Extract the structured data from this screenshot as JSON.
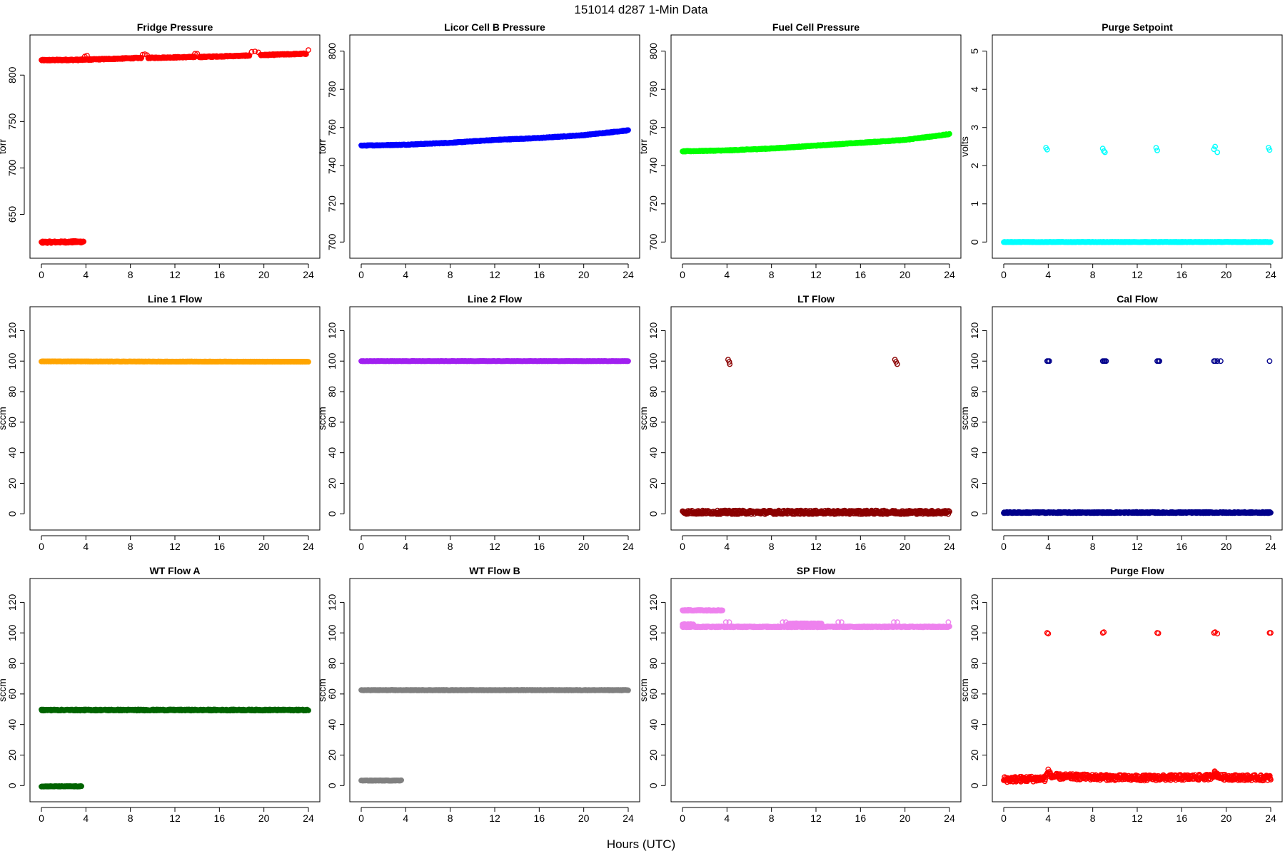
{
  "figure": {
    "title": "151014    d287    1-Min Data",
    "xlabel": "Hours (UTC)"
  },
  "chart_data": [
    {
      "type": "scatter",
      "title": "Fridge Pressure",
      "ylabel": "torr",
      "xlim": [
        0,
        24
      ],
      "ylim": [
        612,
        834
      ],
      "xticks": [
        0,
        4,
        8,
        12,
        16,
        20,
        24
      ],
      "yticks": [
        650,
        700,
        750,
        800
      ],
      "color": "#ff0000",
      "series": [
        {
          "kind": "trend",
          "x": [
            0,
            3.8
          ],
          "y": [
            816,
            816.5
          ],
          "noise": 0.7
        },
        {
          "kind": "trend",
          "x": [
            0,
            3.8
          ],
          "y": [
            620,
            620.5
          ],
          "noise": 1.0
        },
        {
          "kind": "trend",
          "x": [
            3.8,
            9.0
          ],
          "y": [
            816.5,
            818.5
          ],
          "noise": 0.6
        },
        {
          "kind": "trend",
          "x": [
            9.6,
            13.8
          ],
          "y": [
            818.5,
            819.5
          ],
          "noise": 0.6
        },
        {
          "kind": "trend",
          "x": [
            14.2,
            18.7
          ],
          "y": [
            819.5,
            821
          ],
          "noise": 0.6
        },
        {
          "kind": "trend",
          "x": [
            19.7,
            23.8
          ],
          "y": [
            821.5,
            823
          ],
          "noise": 0.6
        },
        {
          "kind": "points",
          "x": [
            3.9,
            4.1,
            9.1,
            9.3,
            9.5,
            13.8,
            14.0,
            18.9,
            19.2,
            19.5,
            24.0
          ],
          "y": [
            820,
            821,
            822,
            822.5,
            821.5,
            823,
            823,
            825,
            825.5,
            824.5,
            827
          ]
        }
      ]
    },
    {
      "type": "scatter",
      "title": "Licor Cell B Pressure",
      "ylabel": "torr",
      "xlim": [
        0,
        24
      ],
      "ylim": [
        696,
        804
      ],
      "xticks": [
        0,
        4,
        8,
        12,
        16,
        20,
        24
      ],
      "yticks": [
        700,
        720,
        740,
        760,
        780,
        800
      ],
      "color": "#0000ff",
      "series": [
        {
          "kind": "trend",
          "x": [
            0,
            4,
            8,
            12,
            16,
            20,
            24
          ],
          "y": [
            750.5,
            751,
            752,
            753.5,
            754.5,
            756,
            758.5
          ],
          "noise": 0.2
        }
      ]
    },
    {
      "type": "scatter",
      "title": "Fuel Cell Pressure",
      "ylabel": "torr",
      "xlim": [
        0,
        24
      ],
      "ylim": [
        696,
        804
      ],
      "xticks": [
        0,
        4,
        8,
        12,
        16,
        20,
        24
      ],
      "yticks": [
        700,
        720,
        740,
        760,
        780,
        800
      ],
      "color": "#00ff00",
      "series": [
        {
          "kind": "trend",
          "x": [
            0,
            4,
            8,
            12,
            16,
            20,
            24
          ],
          "y": [
            747.5,
            748,
            749,
            750.5,
            752,
            753.5,
            756.5
          ],
          "noise": 0.2
        }
      ]
    },
    {
      "type": "scatter",
      "title": "Purge Setpoint",
      "ylabel": "volts",
      "xlim": [
        0,
        24
      ],
      "ylim": [
        -0.2,
        5.2
      ],
      "xticks": [
        0,
        4,
        8,
        12,
        16,
        20,
        24
      ],
      "yticks": [
        0,
        1,
        2,
        3,
        4,
        5
      ],
      "color": "#00ffff",
      "series": [
        {
          "kind": "trend",
          "x": [
            0,
            24
          ],
          "y": [
            0,
            0
          ],
          "noise": 0.005
        },
        {
          "kind": "points",
          "x": [
            3.8,
            3.9,
            8.9,
            9.0,
            9.1,
            13.7,
            13.8,
            18.9,
            19.0,
            19.2,
            23.8,
            23.9
          ],
          "y": [
            2.47,
            2.42,
            2.45,
            2.38,
            2.35,
            2.47,
            2.4,
            2.43,
            2.5,
            2.35,
            2.47,
            2.41
          ]
        }
      ]
    },
    {
      "type": "scatter",
      "title": "Line 1 Flow",
      "ylabel": "sccm",
      "xlim": [
        0,
        24
      ],
      "ylim": [
        -5,
        130
      ],
      "xticks": [
        0,
        4,
        8,
        12,
        16,
        20,
        24
      ],
      "yticks": [
        0,
        20,
        40,
        60,
        80,
        100,
        120
      ],
      "color": "#ffa500",
      "series": [
        {
          "kind": "trend",
          "x": [
            0,
            24
          ],
          "y": [
            99.8,
            99.6
          ],
          "noise": 0.1
        }
      ]
    },
    {
      "type": "scatter",
      "title": "Line 2 Flow",
      "ylabel": "sccm",
      "xlim": [
        0,
        24
      ],
      "ylim": [
        -5,
        130
      ],
      "xticks": [
        0,
        4,
        8,
        12,
        16,
        20,
        24
      ],
      "yticks": [
        0,
        20,
        40,
        60,
        80,
        100,
        120
      ],
      "color": "#a020f0",
      "series": [
        {
          "kind": "trend",
          "x": [
            0,
            24
          ],
          "y": [
            100,
            100
          ],
          "noise": 0.1
        }
      ]
    },
    {
      "type": "scatter",
      "title": "LT Flow",
      "ylabel": "sccm",
      "xlim": [
        0,
        24
      ],
      "ylim": [
        -5,
        130
      ],
      "xticks": [
        0,
        4,
        8,
        12,
        16,
        20,
        24
      ],
      "yticks": [
        0,
        20,
        40,
        60,
        80,
        100,
        120
      ],
      "color": "#8b0000",
      "series": [
        {
          "kind": "trend",
          "x": [
            0,
            24
          ],
          "y": [
            1,
            1
          ],
          "noise": 1.2
        },
        {
          "kind": "points",
          "x": [
            4.1,
            4.2,
            4.25,
            19.1,
            19.2,
            19.3
          ],
          "y": [
            101,
            99.5,
            98,
            101,
            99.5,
            98
          ]
        }
      ]
    },
    {
      "type": "scatter",
      "title": "Cal Flow",
      "ylabel": "sccm",
      "xlim": [
        0,
        24
      ],
      "ylim": [
        -5,
        130
      ],
      "xticks": [
        0,
        4,
        8,
        12,
        16,
        20,
        24
      ],
      "yticks": [
        0,
        20,
        40,
        60,
        80,
        100,
        120
      ],
      "color": "#00008b",
      "series": [
        {
          "kind": "trend",
          "x": [
            0,
            24
          ],
          "y": [
            0.8,
            0.8
          ],
          "noise": 0.4
        },
        {
          "kind": "points",
          "x": [
            3.9,
            4.0,
            4.1,
            8.9,
            9.0,
            9.1,
            9.2,
            13.8,
            13.9,
            14.0,
            18.9,
            19.0,
            19.2,
            19.5,
            23.9
          ],
          "y": [
            100,
            100,
            100,
            100,
            100,
            100,
            100,
            100,
            100,
            100,
            100,
            100,
            100,
            100,
            100
          ]
        }
      ]
    },
    {
      "type": "scatter",
      "title": "WT Flow A",
      "ylabel": "sccm",
      "xlim": [
        0,
        24
      ],
      "ylim": [
        -5,
        130
      ],
      "xticks": [
        0,
        4,
        8,
        12,
        16,
        20,
        24
      ],
      "yticks": [
        0,
        20,
        40,
        60,
        80,
        100,
        120
      ],
      "color": "#006400",
      "series": [
        {
          "kind": "trend",
          "x": [
            0,
            24
          ],
          "y": [
            49.5,
            49.5
          ],
          "noise": 0.4
        },
        {
          "kind": "trend",
          "x": [
            0,
            3.6
          ],
          "y": [
            -0.5,
            -0.5
          ],
          "noise": 0.2
        }
      ]
    },
    {
      "type": "scatter",
      "title": "WT Flow B",
      "ylabel": "sccm",
      "xlim": [
        0,
        24
      ],
      "ylim": [
        -5,
        130
      ],
      "xticks": [
        0,
        4,
        8,
        12,
        16,
        20,
        24
      ],
      "yticks": [
        0,
        20,
        40,
        60,
        80,
        100,
        120
      ],
      "color": "#808080",
      "series": [
        {
          "kind": "trend",
          "x": [
            0,
            24
          ],
          "y": [
            62.5,
            62.5
          ],
          "noise": 0.2
        },
        {
          "kind": "trend",
          "x": [
            0,
            3.6
          ],
          "y": [
            3.3,
            3.3
          ],
          "noise": 0.2
        }
      ]
    },
    {
      "type": "scatter",
      "title": "SP Flow",
      "ylabel": "sccm",
      "xlim": [
        0,
        24
      ],
      "ylim": [
        -5,
        130
      ],
      "xticks": [
        0,
        4,
        8,
        12,
        16,
        20,
        24
      ],
      "yticks": [
        0,
        20,
        40,
        60,
        80,
        100,
        120
      ],
      "color": "#ee82ee",
      "series": [
        {
          "kind": "trend",
          "x": [
            0,
            3.6
          ],
          "y": [
            114.8,
            114.8
          ],
          "noise": 0.3
        },
        {
          "kind": "trend",
          "x": [
            0,
            24
          ],
          "y": [
            104,
            104
          ],
          "noise": 0.3
        },
        {
          "kind": "trend",
          "x": [
            0,
            1.0
          ],
          "y": [
            105.5,
            105.5
          ],
          "noise": 0.3
        },
        {
          "kind": "trend",
          "x": [
            9.5,
            12.5
          ],
          "y": [
            106,
            106
          ],
          "noise": 0.3
        },
        {
          "kind": "points",
          "x": [
            3.9,
            4.2,
            9.0,
            9.3,
            14.0,
            14.3,
            19.0,
            19.3,
            23.9
          ],
          "y": [
            107,
            107,
            107,
            107,
            107,
            107,
            107,
            107,
            107
          ]
        }
      ]
    },
    {
      "type": "scatter",
      "title": "Purge Flow",
      "ylabel": "sccm",
      "xlim": [
        0,
        24
      ],
      "ylim": [
        -5,
        130
      ],
      "xticks": [
        0,
        4,
        8,
        12,
        16,
        20,
        24
      ],
      "yticks": [
        0,
        20,
        40,
        60,
        80,
        100,
        120
      ],
      "color": "#ff0000",
      "series": [
        {
          "kind": "trend",
          "x": [
            0,
            3.7,
            4.0,
            4.3,
            12,
            18.5,
            19.0,
            19.5,
            24
          ],
          "y": [
            4,
            4.5,
            9,
            6,
            5,
            5.5,
            8,
            5.5,
            5
          ],
          "noise": 1.8
        },
        {
          "kind": "points",
          "x": [
            3.9,
            4.0,
            8.9,
            9.0,
            13.8,
            13.9,
            18.9,
            19.0,
            19.2,
            23.9,
            24.0
          ],
          "y": [
            100,
            99.5,
            100,
            100.5,
            100,
            99.8,
            100,
            100.5,
            99.5,
            100,
            100
          ]
        }
      ]
    }
  ]
}
